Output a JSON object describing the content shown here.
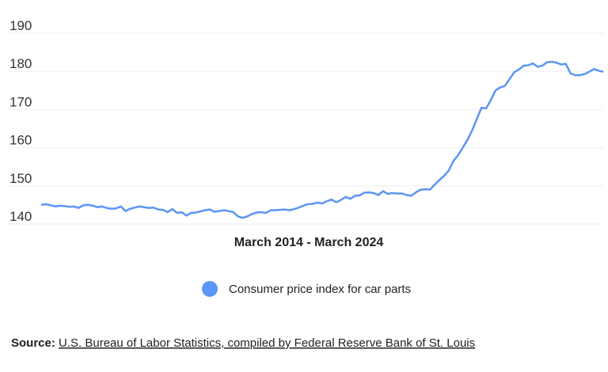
{
  "chart_data": {
    "type": "line",
    "xlabel": "March 2014 - March 2024",
    "series": [
      {
        "name": "Consumer price index for car parts",
        "color": "#5b95f5",
        "values": [
          145.0,
          145.2,
          144.9,
          144.6,
          144.8,
          144.7,
          144.5,
          144.6,
          144.2,
          144.9,
          145.0,
          144.8,
          144.4,
          144.6,
          144.2,
          144.0,
          144.1,
          144.6,
          143.4,
          144.0,
          144.3,
          144.6,
          144.4,
          144.2,
          144.3,
          143.8,
          143.7,
          143.1,
          143.9,
          142.9,
          143.1,
          142.2,
          142.9,
          143.0,
          143.3,
          143.6,
          143.8,
          143.2,
          143.4,
          143.6,
          143.4,
          143.1,
          142.0,
          141.6,
          142.0,
          142.6,
          143.0,
          143.1,
          142.9,
          143.6,
          143.6,
          143.7,
          143.8,
          143.6,
          143.9,
          144.3,
          144.8,
          145.2,
          145.3,
          145.6,
          145.4,
          146.0,
          146.4,
          145.7,
          146.3,
          147.1,
          146.6,
          147.4,
          147.5,
          148.2,
          148.3,
          148.1,
          147.6,
          148.6,
          147.9,
          148.1,
          148.0,
          148.0,
          147.6,
          147.4,
          148.3,
          149.0,
          149.1,
          149.0,
          150.3,
          151.5,
          152.6,
          154.0,
          156.5,
          158.0,
          160.0,
          162.0,
          164.5,
          167.5,
          170.5,
          170.3,
          172.5,
          175.0,
          175.8,
          176.2,
          178.0,
          179.8,
          180.5,
          181.5,
          181.6,
          182.1,
          181.2,
          181.5,
          182.4,
          182.5,
          182.3,
          181.8,
          182.0,
          179.5,
          179.0,
          179.0,
          179.3,
          179.9,
          180.6,
          180.2,
          179.9
        ]
      }
    ],
    "ylim": [
      140,
      190
    ],
    "yticks": [
      140,
      150,
      160,
      170,
      180,
      190
    ],
    "grid": true,
    "source_label": "Source:",
    "source": "U.S. Bureau of Labor Statistics, compiled by Federal Reserve Bank of St. Louis"
  }
}
